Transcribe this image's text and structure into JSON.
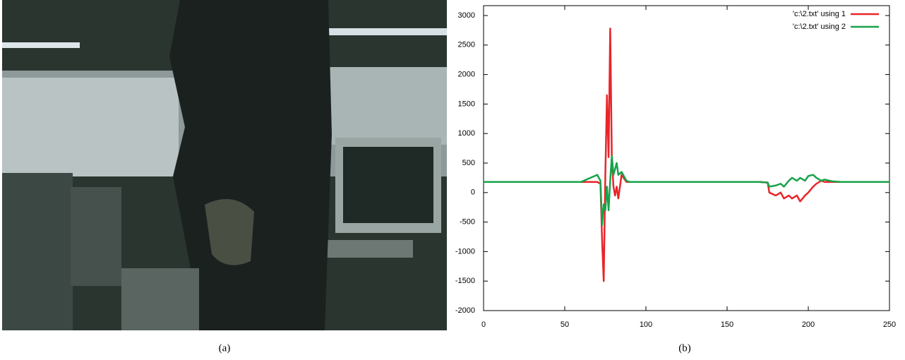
{
  "captions": [
    "(a)",
    "(b)"
  ],
  "chart_data": {
    "type": "line",
    "x": [
      0,
      10,
      20,
      30,
      40,
      50,
      60,
      70,
      72,
      73,
      74,
      75,
      76,
      77,
      78,
      79,
      80,
      81,
      82,
      83,
      85,
      88,
      90,
      100,
      110,
      120,
      130,
      140,
      150,
      160,
      170,
      175,
      176,
      180,
      183,
      185,
      188,
      190,
      193,
      195,
      198,
      200,
      203,
      205,
      208,
      210,
      215,
      220,
      230,
      240,
      250
    ],
    "series": [
      {
        "name": "'c:\\2.txt' using 1",
        "color": "#e8262a",
        "values": [
          180,
          180,
          180,
          180,
          180,
          180,
          180,
          180,
          150,
          -800,
          -1500,
          300,
          1650,
          600,
          2780,
          600,
          100,
          -50,
          100,
          -100,
          300,
          180,
          180,
          180,
          180,
          180,
          180,
          180,
          180,
          180,
          180,
          170,
          0,
          -50,
          0,
          -100,
          -50,
          -100,
          -50,
          -150,
          -50,
          0,
          100,
          150,
          200,
          180,
          180,
          180,
          180,
          180,
          180
        ]
      },
      {
        "name": "'c:\\2.txt' using 2",
        "color": "#17a34a",
        "values": [
          180,
          180,
          180,
          180,
          180,
          180,
          180,
          300,
          200,
          -550,
          -200,
          -300,
          100,
          -300,
          200,
          620,
          300,
          400,
          500,
          300,
          350,
          200,
          180,
          180,
          180,
          180,
          180,
          180,
          180,
          180,
          180,
          170,
          100,
          120,
          150,
          100,
          200,
          250,
          200,
          250,
          200,
          280,
          300,
          250,
          200,
          220,
          190,
          180,
          180,
          180,
          180
        ]
      }
    ],
    "xlim": [
      0,
      250
    ],
    "xticks": [
      0,
      50,
      100,
      150,
      200,
      250
    ],
    "ylim": [
      -2000,
      3000
    ],
    "yticks": [
      -2000,
      -1500,
      -1000,
      -500,
      0,
      500,
      1000,
      1500,
      2000,
      2500,
      3000
    ],
    "legend": "top-right",
    "grid": false
  }
}
